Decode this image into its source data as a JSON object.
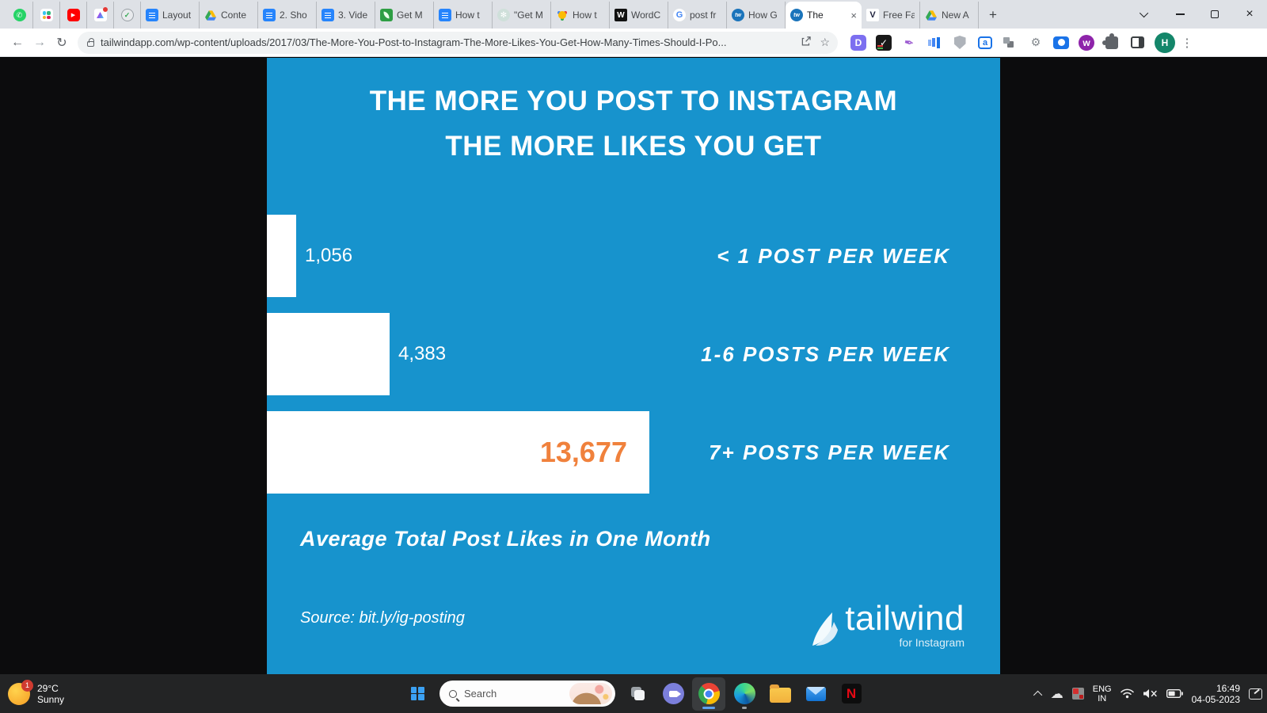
{
  "icons": {
    "back": "←",
    "forward": "→",
    "reload": "↻",
    "star": "☆",
    "share": "↗",
    "plus": "+",
    "close_tab": "×",
    "close_window": "×",
    "kebab": "⋮",
    "cloud": "☁",
    "check": "✓",
    "play": "▶",
    "phone": "✆",
    "knot": "✻",
    "feather": "✒",
    "widget": "⚙",
    "whatsapp": "whatsapp-icon",
    "slack": "slack-icon",
    "youtube": "youtube-icon",
    "clickup": "clickup-icon",
    "check_circle": "check-circle-icon"
  },
  "browser": {
    "tabs": [
      {
        "icon": "google-docs",
        "title": "Layout"
      },
      {
        "icon": "google-drive",
        "title": "Conte"
      },
      {
        "icon": "google-docs",
        "title": "2. Sho"
      },
      {
        "icon": "google-docs",
        "title": "3. Vide"
      },
      {
        "icon": "leaf",
        "title": "Get M"
      },
      {
        "icon": "google-docs",
        "title": "How t"
      },
      {
        "icon": "chatgpt",
        "title": "\"Get M"
      },
      {
        "icon": "colorful-star",
        "title": "How t"
      },
      {
        "icon": "wordcounter",
        "title": "WordC"
      },
      {
        "icon": "google",
        "title": "post fr"
      },
      {
        "icon": "tailwind",
        "title": "How G"
      },
      {
        "icon": "tailwind",
        "title": "The",
        "active": true
      },
      {
        "icon": "veed",
        "title": "Free Fa",
        "veed_letter": "V"
      },
      {
        "icon": "google-drive",
        "title": "New A"
      }
    ],
    "favicon_letters": {
      "youtube": "▶",
      "wordcounter": "W",
      "google": "G",
      "tailwind": "tw",
      "veed": "V",
      "whatsapp": "✆",
      "chatgpt": "✻",
      "check": "✓",
      "d_ext": "D",
      "wordtune": "w",
      "tag": "a",
      "netflix": "N"
    },
    "url": "tailwindapp.com/wp-content/uploads/2017/03/The-More-You-Post-to-Instagram-The-More-Likes-You-Get-How-Many-Times-Should-I-Po...",
    "profile_initial": "H"
  },
  "infographic": {
    "title_line1": "THE MORE YOU POST TO INSTAGRAM",
    "title_line2": "THE MORE LIKES YOU GET",
    "note": "Average Total Post Likes in One Month",
    "source": "Source: bit.ly/ig-posting",
    "brand_name": "tailwind",
    "brand_sub": "for Instagram",
    "colors": {
      "background": "#1793cd",
      "bar": "#ffffff",
      "value_highlight": "#f0813c",
      "text": "#ffffff"
    }
  },
  "chart_data": {
    "type": "bar",
    "orientation": "horizontal",
    "categories": [
      "< 1 POST PER WEEK",
      "1-6 POSTS PER WEEK",
      "7+ POSTS PER WEEK"
    ],
    "values": [
      1056,
      4383,
      13677
    ],
    "value_labels": [
      "1,056",
      "4,383",
      "13,677"
    ],
    "title": "THE MORE YOU POST TO INSTAGRAM THE MORE LIKES YOU GET",
    "xlabel": "Average Total Post Likes in One Month",
    "xlim": [
      0,
      13677
    ],
    "grid": false,
    "legend": "none"
  },
  "taskbar": {
    "weather": {
      "badge": "1",
      "temp": "29°C",
      "condition": "Sunny"
    },
    "search_placeholder": "Search",
    "tray": {
      "lang_line1": "ENG",
      "lang_line2": "IN",
      "time": "16:49",
      "date": "04-05-2023"
    }
  }
}
